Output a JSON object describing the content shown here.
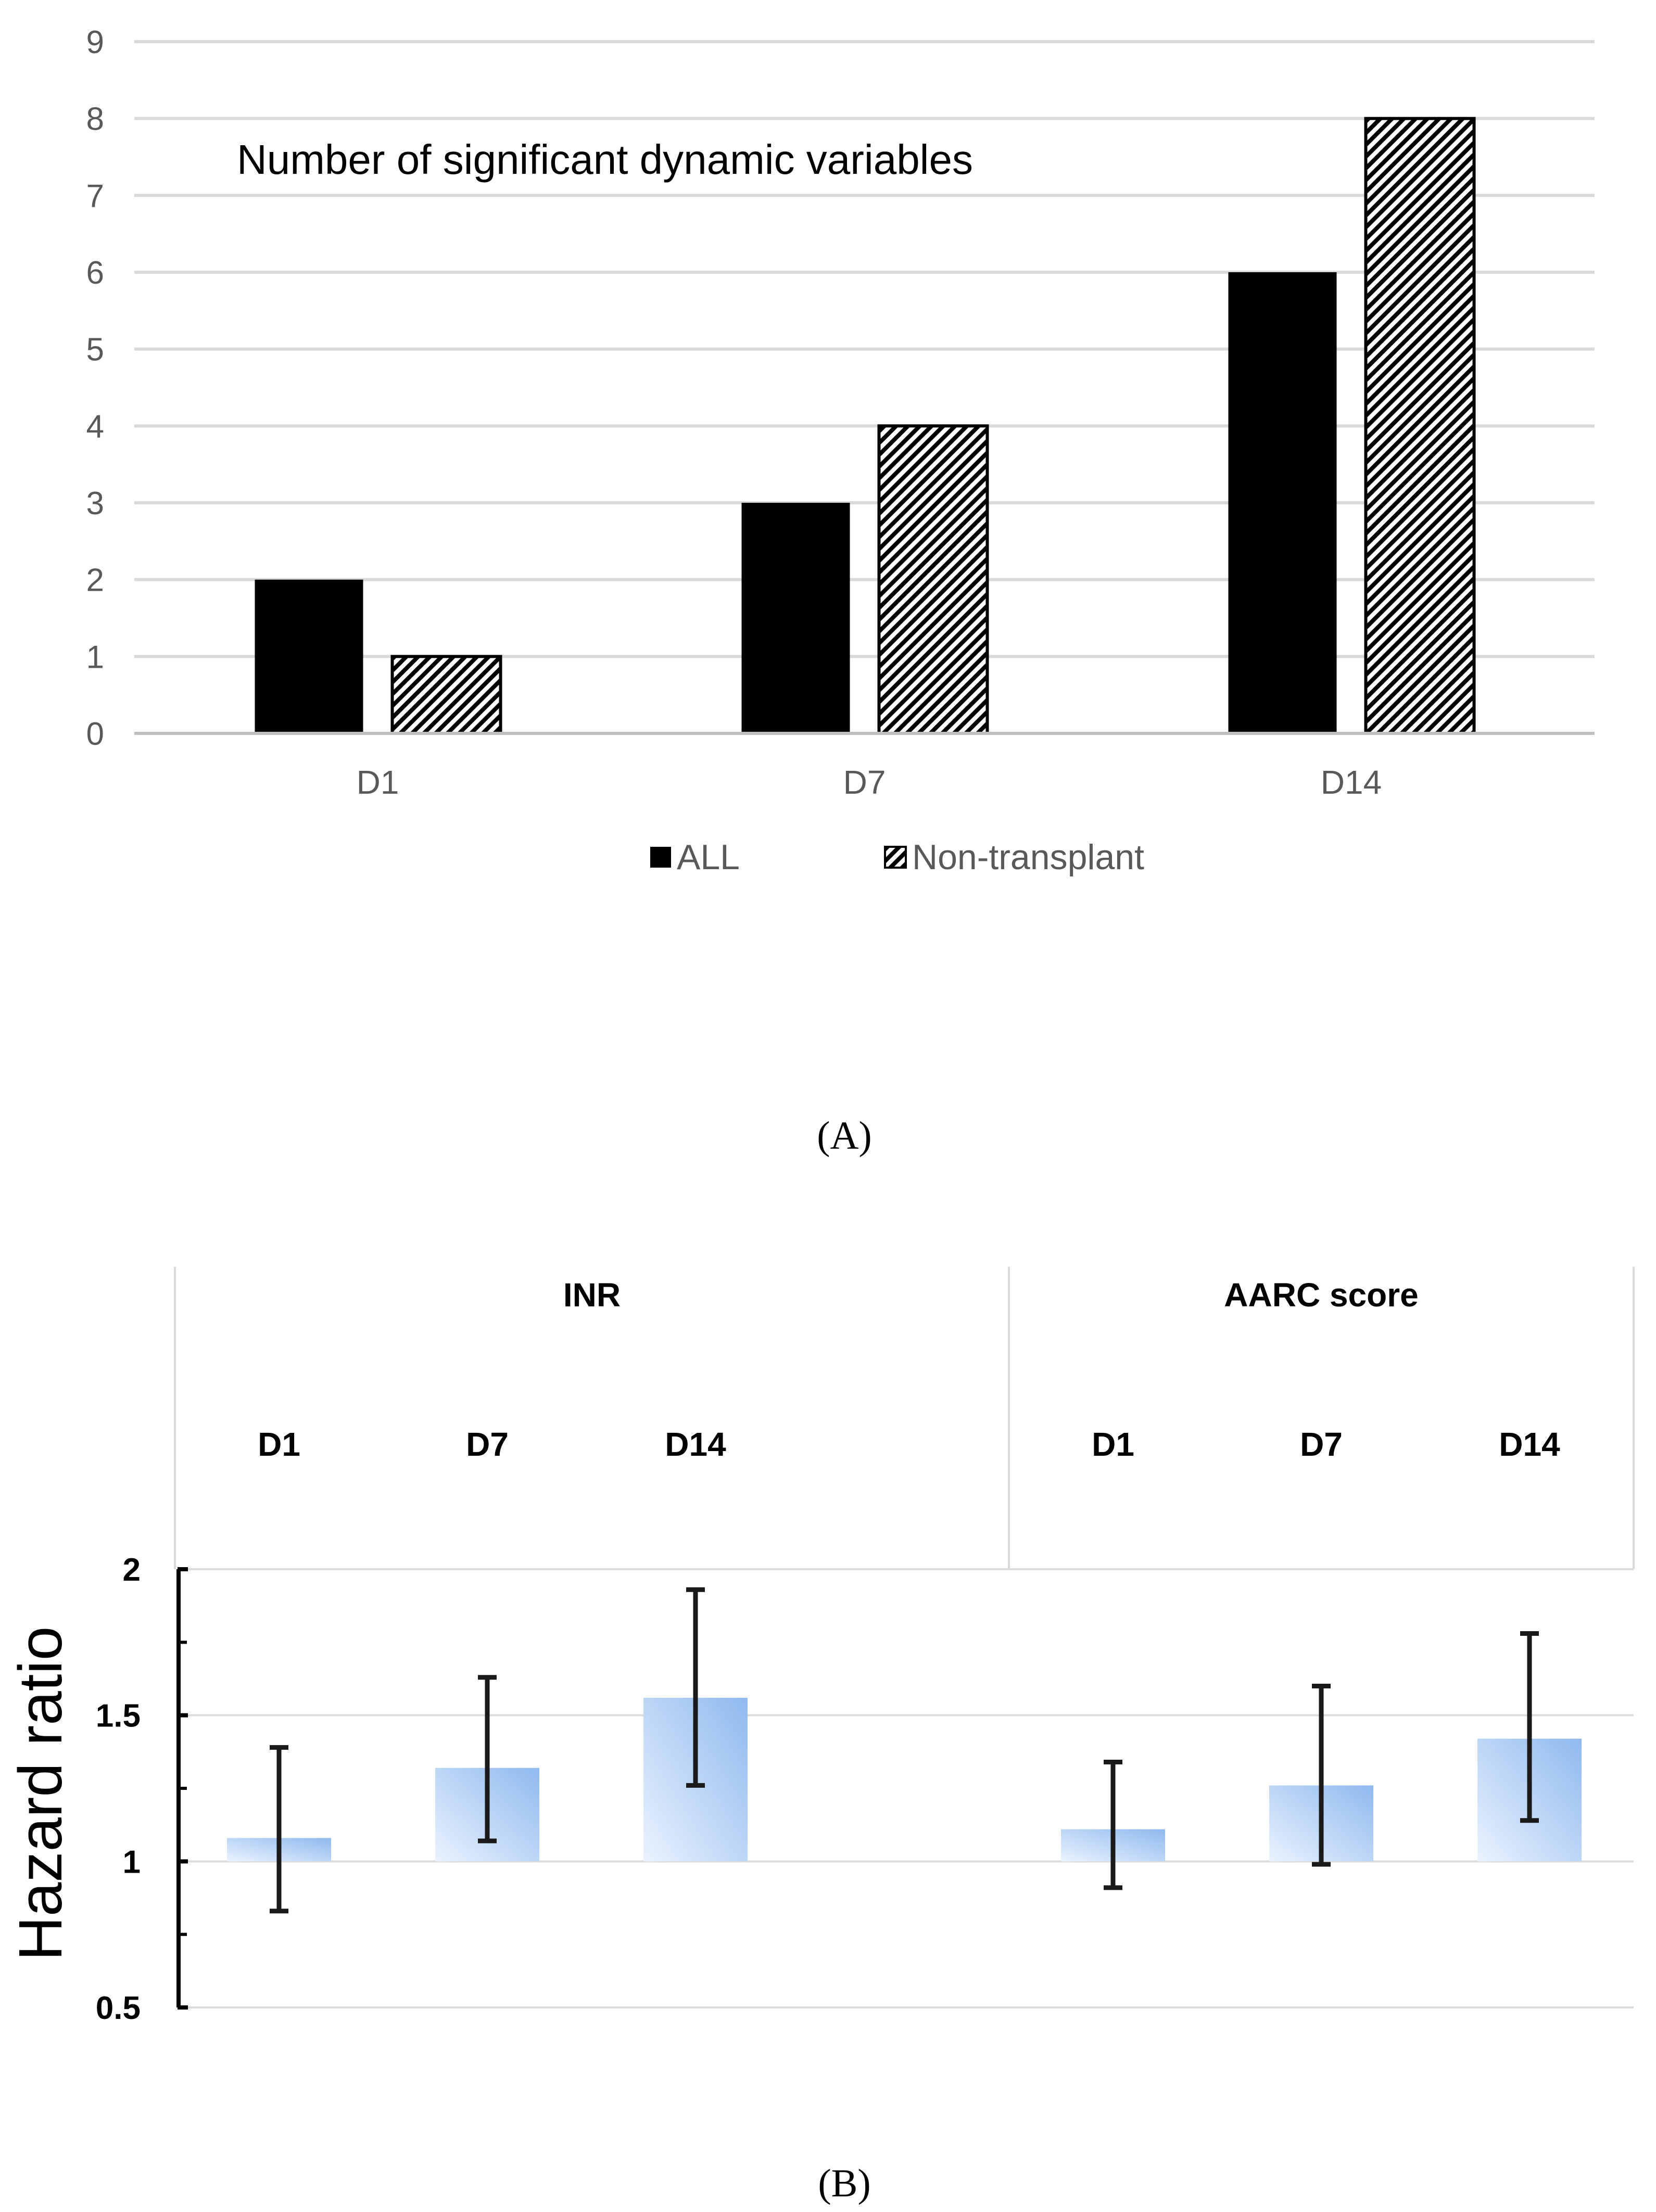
{
  "chart_data": [
    {
      "panel_label": "(A)",
      "type": "bar",
      "title": "Number of significant dynamic variables",
      "xlabel": "",
      "ylabel": "",
      "categories": [
        "D1",
        "D7",
        "D14"
      ],
      "series": [
        {
          "name": "ALL",
          "values": [
            2,
            3,
            6
          ],
          "color": "#000000",
          "pattern": "solid"
        },
        {
          "name": "Non-transplant",
          "values": [
            1,
            4,
            8
          ],
          "color": "#000000",
          "pattern": "diagonal-hatch"
        }
      ],
      "ylim": [
        0,
        9
      ],
      "yticks": [
        "0",
        "1",
        "2",
        "3",
        "4",
        "5",
        "6",
        "7",
        "8",
        "9"
      ],
      "grid": true,
      "legend": "bottom"
    },
    {
      "panel_label": "(B)",
      "type": "bar",
      "ylabel": "Hazard ratio",
      "xlabel": "",
      "groups": [
        {
          "label": "INR",
          "categories": [
            "D1",
            "D7",
            "D14"
          ],
          "values": [
            1.08,
            1.32,
            1.56
          ],
          "lower": [
            0.83,
            1.07,
            1.26
          ],
          "upper": [
            1.39,
            1.63,
            1.93
          ]
        },
        {
          "label": "AARC score",
          "categories": [
            "D1",
            "D7",
            "D14"
          ],
          "values": [
            1.11,
            1.26,
            1.42
          ],
          "lower": [
            0.91,
            0.99,
            1.14
          ],
          "upper": [
            1.34,
            1.6,
            1.78
          ]
        }
      ],
      "baseline": 1,
      "ylim": [
        0.5,
        2
      ],
      "yticks": [
        "0.5",
        "1",
        "1.5",
        "2"
      ],
      "grid": true,
      "bar_color": "#8fb9ee",
      "error_bar_color": "#1a1a1a"
    }
  ]
}
